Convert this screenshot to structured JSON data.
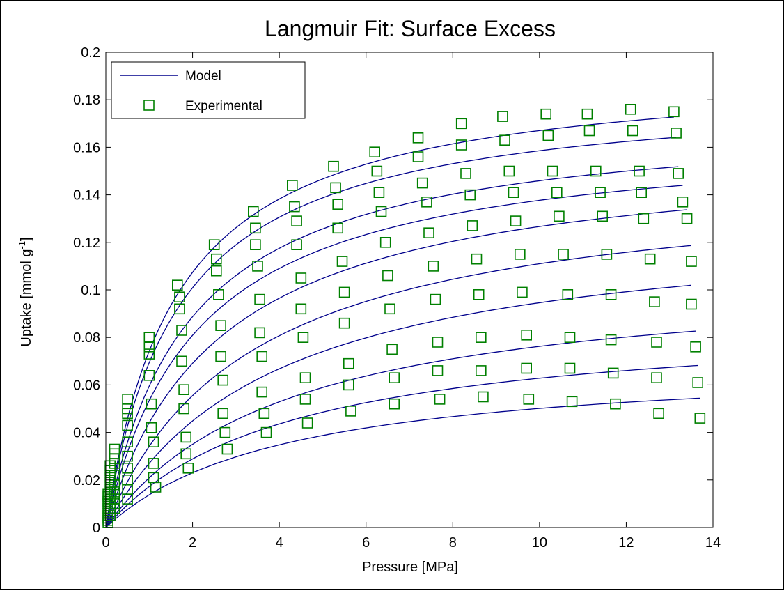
{
  "chart_data": {
    "type": "scatter",
    "title": "Langmuir Fit: Surface Excess",
    "xlabel": "Pressure [MPa]",
    "ylabel_main": "Uptake [mmol g",
    "ylabel_sup": "-1",
    "ylabel_close": "]",
    "xlim": [
      0,
      14
    ],
    "ylim": [
      0,
      0.2
    ],
    "xticks": [
      0,
      2,
      4,
      6,
      8,
      10,
      12,
      14
    ],
    "yticks": [
      0,
      0.02,
      0.04,
      0.06,
      0.08,
      0.1,
      0.12,
      0.14,
      0.16,
      0.18,
      0.2
    ],
    "xtick_labels": [
      "0",
      "2",
      "4",
      "6",
      "8",
      "10",
      "12",
      "14"
    ],
    "ytick_labels": [
      "0",
      "0.02",
      "0.04",
      "0.06",
      "0.08",
      "0.1",
      "0.12",
      "0.14",
      "0.16",
      "0.18",
      "0.2"
    ],
    "grid": false,
    "legend_position": "top-left",
    "legend": [
      {
        "label": "Model",
        "kind": "line",
        "color": "#00008b"
      },
      {
        "label": "Experimental",
        "kind": "square-marker",
        "color": "#008000"
      }
    ],
    "model_color": "#00008b",
    "marker_color": "#008000",
    "series": [
      {
        "model": {
          "qmax": 0.194,
          "b": 0.62
        },
        "x": [
          0.05,
          0.1,
          0.2,
          0.5,
          1.0,
          1.65,
          2.5,
          3.4,
          4.3,
          5.25,
          6.2,
          7.2,
          8.2,
          9.15,
          10.15,
          11.1,
          12.1,
          13.1
        ],
        "y": [
          0.014,
          0.026,
          0.033,
          0.054,
          0.08,
          0.102,
          0.119,
          0.133,
          0.144,
          0.152,
          0.158,
          0.164,
          0.17,
          0.173,
          0.174,
          0.174,
          0.176,
          0.175
        ]
      },
      {
        "model": {
          "qmax": 0.185,
          "b": 0.6
        },
        "x": [
          0.05,
          0.1,
          0.2,
          0.5,
          1.0,
          1.7,
          2.55,
          3.45,
          4.35,
          5.3,
          6.25,
          7.2,
          8.2,
          9.2,
          10.2,
          11.15,
          12.15,
          13.15
        ],
        "y": [
          0.013,
          0.024,
          0.031,
          0.05,
          0.076,
          0.097,
          0.113,
          0.126,
          0.135,
          0.143,
          0.15,
          0.156,
          0.161,
          0.163,
          0.165,
          0.167,
          0.167,
          0.166
        ]
      },
      {
        "model": {
          "qmax": 0.174,
          "b": 0.52
        },
        "x": [
          0.05,
          0.1,
          0.2,
          0.5,
          1.0,
          1.7,
          2.55,
          3.45,
          4.4,
          5.35,
          6.3,
          7.3,
          8.3,
          9.3,
          10.3,
          11.3,
          12.3,
          13.2
        ],
        "y": [
          0.011,
          0.021,
          0.029,
          0.048,
          0.073,
          0.092,
          0.108,
          0.119,
          0.129,
          0.136,
          0.141,
          0.145,
          0.149,
          0.15,
          0.15,
          0.15,
          0.15,
          0.149
        ]
      },
      {
        "model": {
          "qmax": 0.167,
          "b": 0.47
        },
        "x": [
          0.05,
          0.1,
          0.2,
          0.5,
          1.0,
          1.75,
          2.6,
          3.5,
          4.4,
          5.35,
          6.35,
          7.4,
          8.4,
          9.4,
          10.4,
          11.4,
          12.35,
          13.3
        ],
        "y": [
          0.01,
          0.019,
          0.027,
          0.043,
          0.064,
          0.083,
          0.098,
          0.11,
          0.119,
          0.126,
          0.133,
          0.137,
          0.14,
          0.141,
          0.141,
          0.141,
          0.141,
          0.137
        ]
      },
      {
        "model": {
          "qmax": 0.16,
          "b": 0.38
        },
        "x": [
          0.05,
          0.1,
          0.2,
          0.5,
          1.05,
          1.75,
          2.65,
          3.55,
          4.5,
          5.45,
          6.45,
          7.45,
          8.45,
          9.45,
          10.45,
          11.45,
          12.4,
          13.4
        ],
        "y": [
          0.008,
          0.016,
          0.022,
          0.036,
          0.052,
          0.07,
          0.085,
          0.096,
          0.105,
          0.112,
          0.12,
          0.124,
          0.127,
          0.129,
          0.131,
          0.131,
          0.13,
          0.13
        ]
      },
      {
        "model": {
          "qmax": 0.148,
          "b": 0.3
        },
        "x": [
          0.05,
          0.1,
          0.2,
          0.5,
          1.05,
          1.8,
          2.65,
          3.55,
          4.5,
          5.5,
          6.5,
          7.55,
          8.55,
          9.55,
          10.55,
          11.55,
          12.55,
          13.5
        ],
        "y": [
          0.006,
          0.012,
          0.018,
          0.03,
          0.042,
          0.058,
          0.072,
          0.082,
          0.092,
          0.099,
          0.106,
          0.11,
          0.113,
          0.115,
          0.115,
          0.115,
          0.113,
          0.112
        ]
      },
      {
        "model": {
          "qmax": 0.131,
          "b": 0.26
        },
        "x": [
          0.05,
          0.1,
          0.2,
          0.5,
          1.1,
          1.8,
          2.7,
          3.6,
          4.55,
          5.5,
          6.55,
          7.6,
          8.6,
          9.6,
          10.65,
          11.65,
          12.65,
          13.5
        ],
        "y": [
          0.005,
          0.009,
          0.015,
          0.025,
          0.036,
          0.05,
          0.062,
          0.072,
          0.08,
          0.086,
          0.092,
          0.096,
          0.098,
          0.099,
          0.098,
          0.098,
          0.095,
          0.094
        ]
      },
      {
        "model": {
          "qmax": 0.108,
          "b": 0.24
        },
        "x": [
          0.05,
          0.1,
          0.2,
          0.5,
          1.1,
          1.85,
          2.7,
          3.6,
          4.6,
          5.6,
          6.6,
          7.65,
          8.65,
          9.7,
          10.7,
          11.65,
          12.7,
          13.6
        ],
        "y": [
          0.004,
          0.008,
          0.012,
          0.02,
          0.027,
          0.038,
          0.048,
          0.057,
          0.063,
          0.069,
          0.075,
          0.078,
          0.08,
          0.081,
          0.08,
          0.079,
          0.078,
          0.076
        ]
      },
      {
        "model": {
          "qmax": 0.089,
          "b": 0.24
        },
        "x": [
          0.05,
          0.1,
          0.2,
          0.5,
          1.1,
          1.85,
          2.75,
          3.65,
          4.6,
          5.6,
          6.65,
          7.65,
          8.65,
          9.7,
          10.7,
          11.7,
          12.7,
          13.65
        ],
        "y": [
          0.003,
          0.006,
          0.01,
          0.016,
          0.021,
          0.031,
          0.04,
          0.048,
          0.054,
          0.06,
          0.063,
          0.066,
          0.066,
          0.067,
          0.067,
          0.065,
          0.063,
          0.061
        ]
      },
      {
        "model": {
          "qmax": 0.071,
          "b": 0.24
        },
        "x": [
          0.05,
          0.1,
          0.2,
          0.5,
          1.15,
          1.9,
          2.8,
          3.7,
          4.65,
          5.65,
          6.65,
          7.7,
          8.7,
          9.75,
          10.75,
          11.75,
          12.75,
          13.7
        ],
        "y": [
          0.002,
          0.005,
          0.008,
          0.012,
          0.017,
          0.025,
          0.033,
          0.04,
          0.044,
          0.049,
          0.052,
          0.054,
          0.055,
          0.054,
          0.053,
          0.052,
          0.048,
          0.046
        ]
      }
    ]
  }
}
